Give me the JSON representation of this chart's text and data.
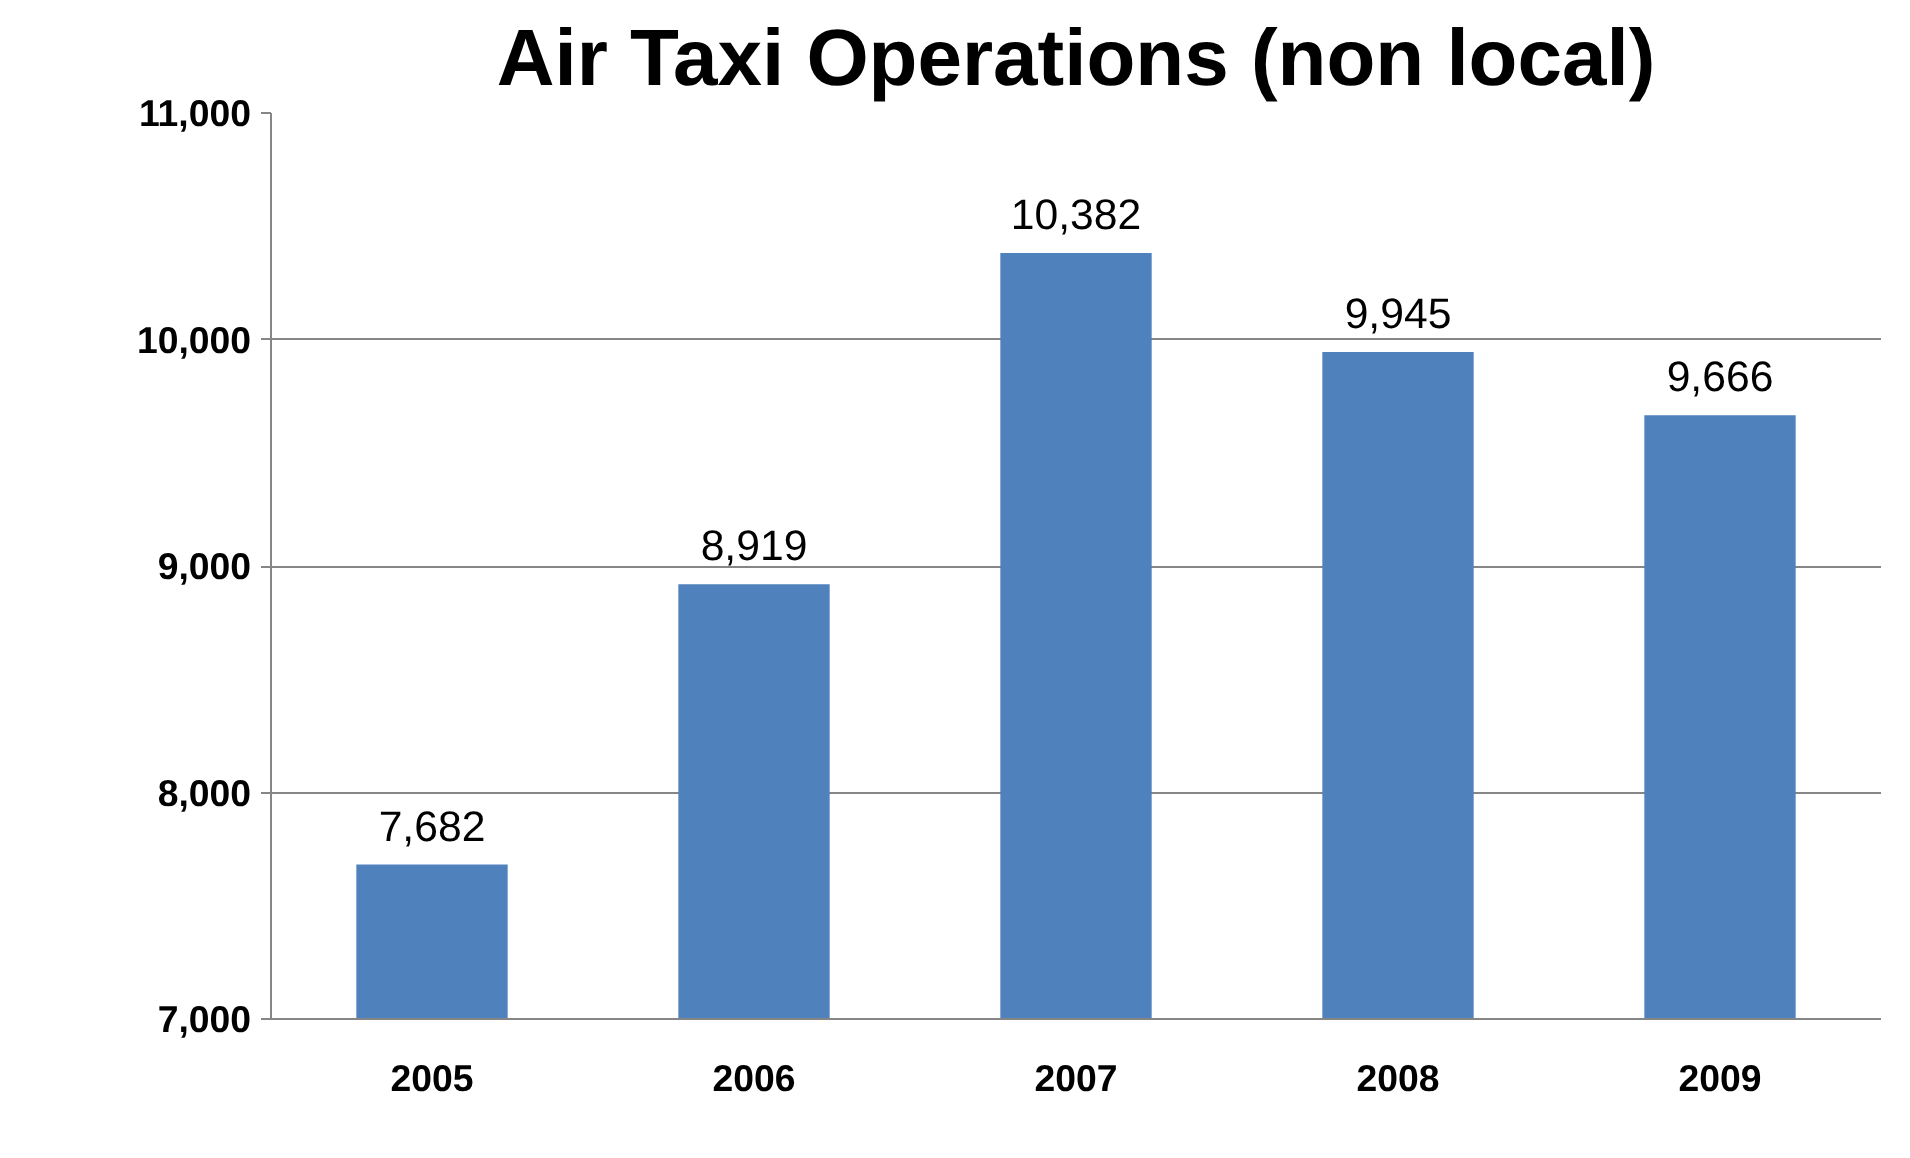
{
  "chart_data": {
    "type": "bar",
    "title": "Air Taxi Operations (non local)",
    "categories": [
      "2005",
      "2006",
      "2007",
      "2008",
      "2009"
    ],
    "values": [
      7682,
      8919,
      10382,
      9945,
      9666
    ],
    "color": "#4f81bd",
    "ylim": [
      7000,
      11000
    ],
    "yticks": [
      {
        "value": 7000,
        "label": "7,000"
      },
      {
        "value": 8000,
        "label": "8,000"
      },
      {
        "value": 9000,
        "label": "9,000"
      },
      {
        "value": 10000,
        "label": "10,000"
      },
      {
        "value": 11000,
        "label": "11,000"
      }
    ],
    "value_labels": [
      "7,682",
      "8,919",
      "10,382",
      "9,945",
      "9,666"
    ],
    "grid": "y"
  }
}
